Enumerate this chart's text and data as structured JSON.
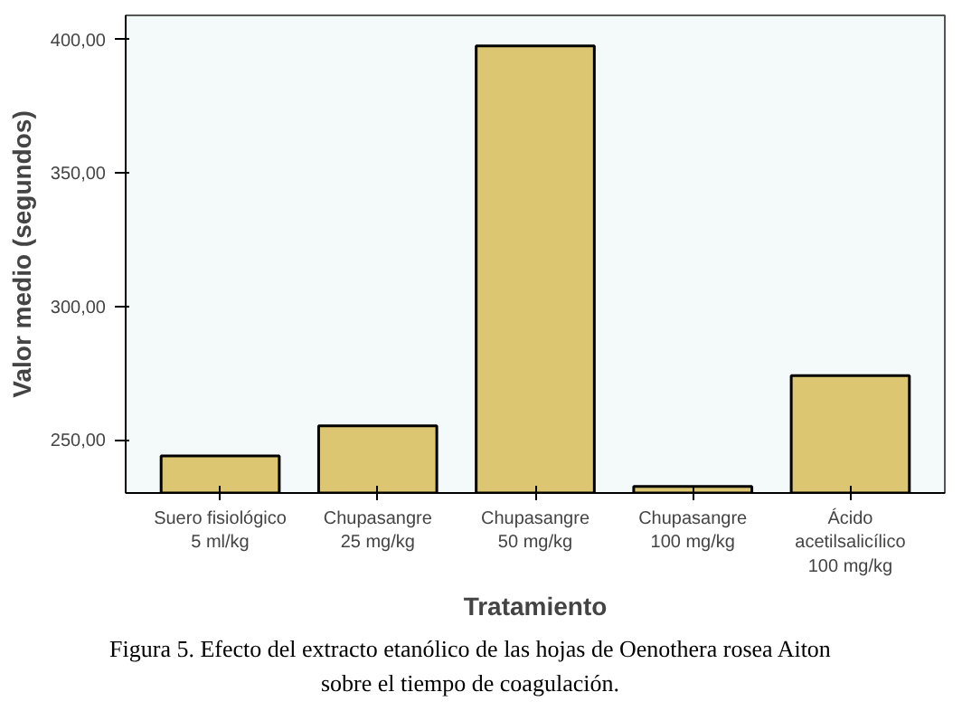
{
  "chart_data": {
    "type": "bar",
    "categories": [
      "Suero fisiológico\n5 ml/kg",
      "Chupasangre\n25 mg/kg",
      "Chupasangre\n50 mg/kg",
      "Chupasangre\n100 mg/kg",
      "Ácido\nacetilsalicílico\n100 mg/kg"
    ],
    "values": [
      243.9,
      255.2,
      397.6,
      232.5,
      274.0
    ],
    "color": "#dcc672",
    "xlabel": "Tratamiento",
    "ylabel": "Valor medio (segundos)",
    "ylim": [
      230,
      409
    ],
    "yticks": [
      {
        "value": 250,
        "label": "250,00"
      },
      {
        "value": 300,
        "label": "300,00"
      },
      {
        "value": 350,
        "label": "350,00"
      },
      {
        "value": 400,
        "label": "400,00"
      }
    ],
    "grid": false,
    "annotations": [
      "Figura 5. Efecto del extracto etanólico de las hojas de Oenothera rosea Aiton sobre el tiempo de coagulación."
    ]
  }
}
